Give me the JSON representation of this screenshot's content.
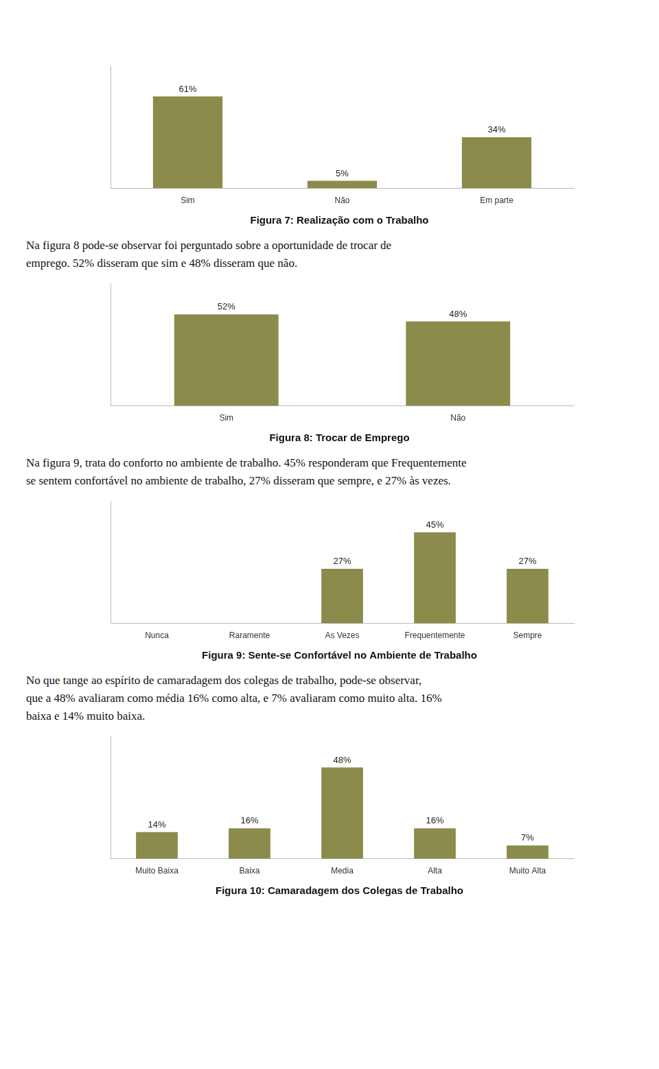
{
  "chart_data": [
    {
      "type": "bar",
      "title": "Figura 7: Realização com o Trabalho",
      "categories": [
        "Sim",
        "Não",
        "Em parte"
      ],
      "values": [
        61,
        5,
        34
      ],
      "value_labels": [
        "61%",
        "5%",
        "34%"
      ],
      "data_labels": true,
      "color": "#8B8B4B",
      "ylim": [
        0,
        81.3
      ],
      "grid": false,
      "tick_labels": "x"
    },
    {
      "type": "bar",
      "title": "Figura 8: Trocar de Emprego",
      "annotations": [
        "Na figura 8 pode-se observar foi perguntado sobre a oportunidade de trocar de",
        "emprego. 52% disseram que sim e 48% disseram que não."
      ],
      "categories": [
        "Sim",
        "Não"
      ],
      "values": [
        52,
        48
      ],
      "value_labels": [
        "52%",
        "48%"
      ],
      "data_labels": true,
      "color": "#8B8B4B",
      "ylim": [
        0,
        69.6
      ],
      "grid": false,
      "tick_labels": "x"
    },
    {
      "type": "bar",
      "title": "Figura 9: Sente-se Confortável no Ambiente de Trabalho",
      "annotations": [
        "Na figura 9, trata do conforto no ambiente de trabalho. 45% responderam que Frequentemente",
        "se sentem confortável no ambiente de trabalho, 27% disseram que sempre, e 27% às vezes."
      ],
      "categories": [
        "Nunca",
        "Raramente",
        "As Vezes",
        "Frequentemente",
        "Sempre"
      ],
      "values": [
        0,
        0,
        27,
        45,
        27
      ],
      "value_labels": [
        null,
        null,
        "27%",
        "45%",
        "27%"
      ],
      "data_labels": true,
      "color": "#8B8B4B",
      "ylim": [
        0,
        60.5
      ],
      "grid": false,
      "tick_labels": "x"
    },
    {
      "type": "bar",
      "title": "Figura 10: Camaradagem dos Colegas de Trabalho",
      "annotations": [
        "No que tange ao espírito de camaradagem dos colegas de trabalho, pode-se observar,",
        "que a 48% avaliaram como média 16% como alta, e 7% avaliaram como muito alta. 16%",
        "baixa e 14% muito baixa."
      ],
      "categories": [
        "Muito Baixa",
        "Baixa",
        "Media",
        "Alta",
        "Muito Alta"
      ],
      "values": [
        14,
        16,
        48,
        16,
        7
      ],
      "value_labels": [
        "14%",
        "16%",
        "48%",
        "16%",
        "7%"
      ],
      "data_labels": true,
      "color": "#8B8B4B",
      "ylim": [
        0,
        64.4
      ],
      "grid": false,
      "tick_labels": "x"
    }
  ]
}
